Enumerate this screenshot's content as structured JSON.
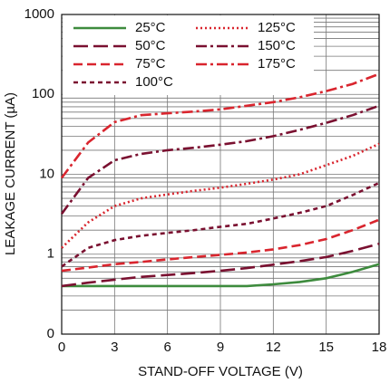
{
  "chart_data": {
    "type": "line",
    "xlabel": "STAND-OFF VOLTAGE (V)",
    "ylabel": "LEAKAGE CURRENT (µA)",
    "x": [
      0,
      1.5,
      3,
      4.5,
      6,
      7.5,
      9,
      10.5,
      12,
      13.5,
      15,
      16.5,
      18
    ],
    "xlim": [
      0,
      18
    ],
    "xticks": [
      0,
      3,
      6,
      9,
      12,
      15,
      18
    ],
    "ylim": [
      0.1,
      1000
    ],
    "ylog": true,
    "yticks": [
      {
        "value": 0.1,
        "label": "0"
      },
      1,
      10,
      100,
      1000
    ],
    "grid": true,
    "legend": "upper left",
    "series": [
      {
        "name": "25°C",
        "color": "#3d8b3d",
        "style": "solid",
        "values": [
          0.4,
          0.4,
          0.4,
          0.4,
          0.4,
          0.4,
          0.4,
          0.4,
          0.42,
          0.45,
          0.5,
          0.6,
          0.75
        ]
      },
      {
        "name": "50°C",
        "color": "#7a1030",
        "style": "long-dash",
        "values": [
          0.4,
          0.44,
          0.48,
          0.52,
          0.55,
          0.58,
          0.62,
          0.67,
          0.74,
          0.82,
          0.92,
          1.1,
          1.35
        ]
      },
      {
        "name": "75°C",
        "color": "#d9252e",
        "style": "dash",
        "values": [
          0.62,
          0.68,
          0.75,
          0.8,
          0.86,
          0.92,
          0.98,
          1.05,
          1.15,
          1.3,
          1.55,
          2.0,
          2.7
        ]
      },
      {
        "name": "100°C",
        "color": "#7a1030",
        "style": "short-dash",
        "values": [
          0.7,
          1.2,
          1.5,
          1.7,
          1.85,
          2.0,
          2.2,
          2.4,
          2.8,
          3.3,
          4.0,
          5.5,
          7.8
        ]
      },
      {
        "name": "125°C",
        "color": "#d9252e",
        "style": "dot",
        "values": [
          1.2,
          2.5,
          4.0,
          5.0,
          5.6,
          6.2,
          6.8,
          7.6,
          8.6,
          10,
          13,
          17,
          24
        ]
      },
      {
        "name": "150°C",
        "color": "#7a1030",
        "style": "dash-dot",
        "values": [
          3.2,
          9,
          15,
          18,
          20,
          21.5,
          23.5,
          26,
          30,
          36,
          44,
          55,
          72
        ]
      },
      {
        "name": "175°C",
        "color": "#d9252e",
        "style": "dash-dot",
        "values": [
          9,
          25,
          45,
          55,
          58,
          61,
          65,
          72,
          80,
          92,
          110,
          135,
          180
        ]
      }
    ]
  }
}
